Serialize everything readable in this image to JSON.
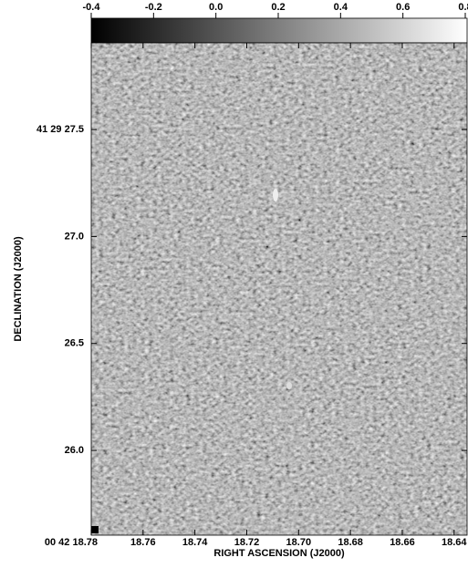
{
  "chart_data": {
    "type": "image",
    "xlabel": "RIGHT ASCENSION (J2000)",
    "ylabel": "DECLINATION (J2000)",
    "xlim": [
      18.78,
      18.635
    ],
    "xticks": [
      {
        "value": 18.78,
        "label": "00 42 18.78"
      },
      18.76,
      18.74,
      18.72,
      {
        "value": 18.7,
        "label": "18.70"
      },
      18.68,
      18.66,
      18.64
    ],
    "ylim": [
      25.604,
      27.905
    ],
    "yticks": [
      {
        "value": 26,
        "label": "26.0"
      },
      26.5,
      {
        "value": 27,
        "label": "27.0"
      },
      {
        "value": 27.5,
        "label": "41 29 27.5"
      }
    ],
    "colorbar_lim": [
      -0.4,
      0.8
    ],
    "colorbar_ticks": [
      -0.4,
      -0.2,
      {
        "value": 0,
        "label": "0.0"
      },
      0.2,
      0.4,
      0.6,
      0.8
    ]
  }
}
